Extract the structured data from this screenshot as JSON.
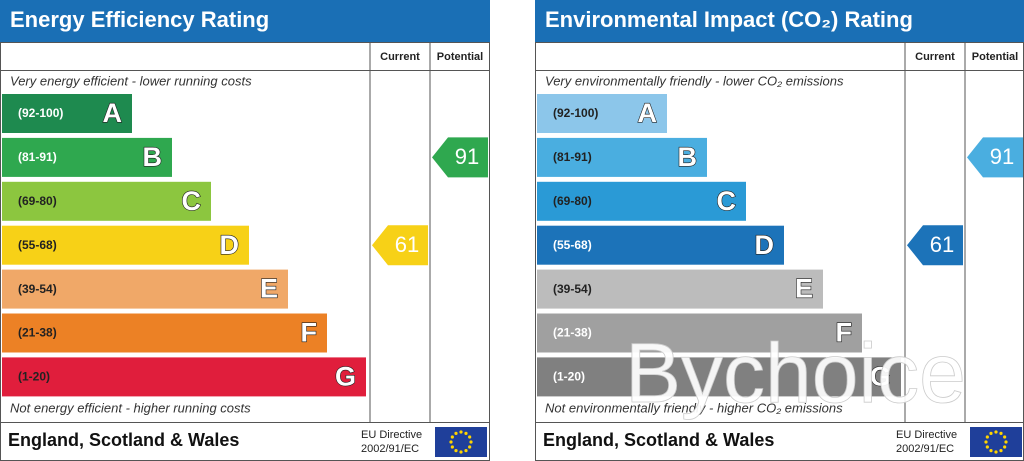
{
  "panels": [
    {
      "title": "Energy Efficiency Rating",
      "columns": [
        "Current",
        "Potential"
      ],
      "top_note": "Very energy efficient - lower running costs",
      "bands": [
        {
          "range": "(92-100)",
          "letter": "A"
        },
        {
          "range": "(81-91)",
          "letter": "B"
        },
        {
          "range": "(69-80)",
          "letter": "C"
        },
        {
          "range": "(55-68)",
          "letter": "D"
        },
        {
          "range": "(39-54)",
          "letter": "E"
        },
        {
          "range": "(21-38)",
          "letter": "F"
        },
        {
          "range": "(1-20)",
          "letter": "G"
        }
      ],
      "bottom_note": "Not energy efficient - higher running costs",
      "current": 61,
      "potential": 91,
      "region": "England, Scotland & Wales",
      "directive": [
        "EU Directive",
        "2002/91/EC"
      ]
    },
    {
      "title": "Environmental Impact (CO₂) Rating",
      "columns": [
        "Current",
        "Potential"
      ],
      "top_note": "Very environmentally friendly - lower CO₂ emissions",
      "bands": [
        {
          "range": "(92-100)",
          "letter": "A"
        },
        {
          "range": "(81-91)",
          "letter": "B"
        },
        {
          "range": "(69-80)",
          "letter": "C"
        },
        {
          "range": "(55-68)",
          "letter": "D"
        },
        {
          "range": "(39-54)",
          "letter": "E"
        },
        {
          "range": "(21-38)",
          "letter": "F"
        },
        {
          "range": "(1-20)",
          "letter": "G"
        }
      ],
      "bottom_note": "Not environmentally friendly - higher CO₂ emissions",
      "current": 61,
      "potential": 91,
      "region": "England, Scotland & Wales",
      "directive": [
        "EU Directive",
        "2002/91/EC"
      ]
    }
  ],
  "watermark": "Bychoice"
}
